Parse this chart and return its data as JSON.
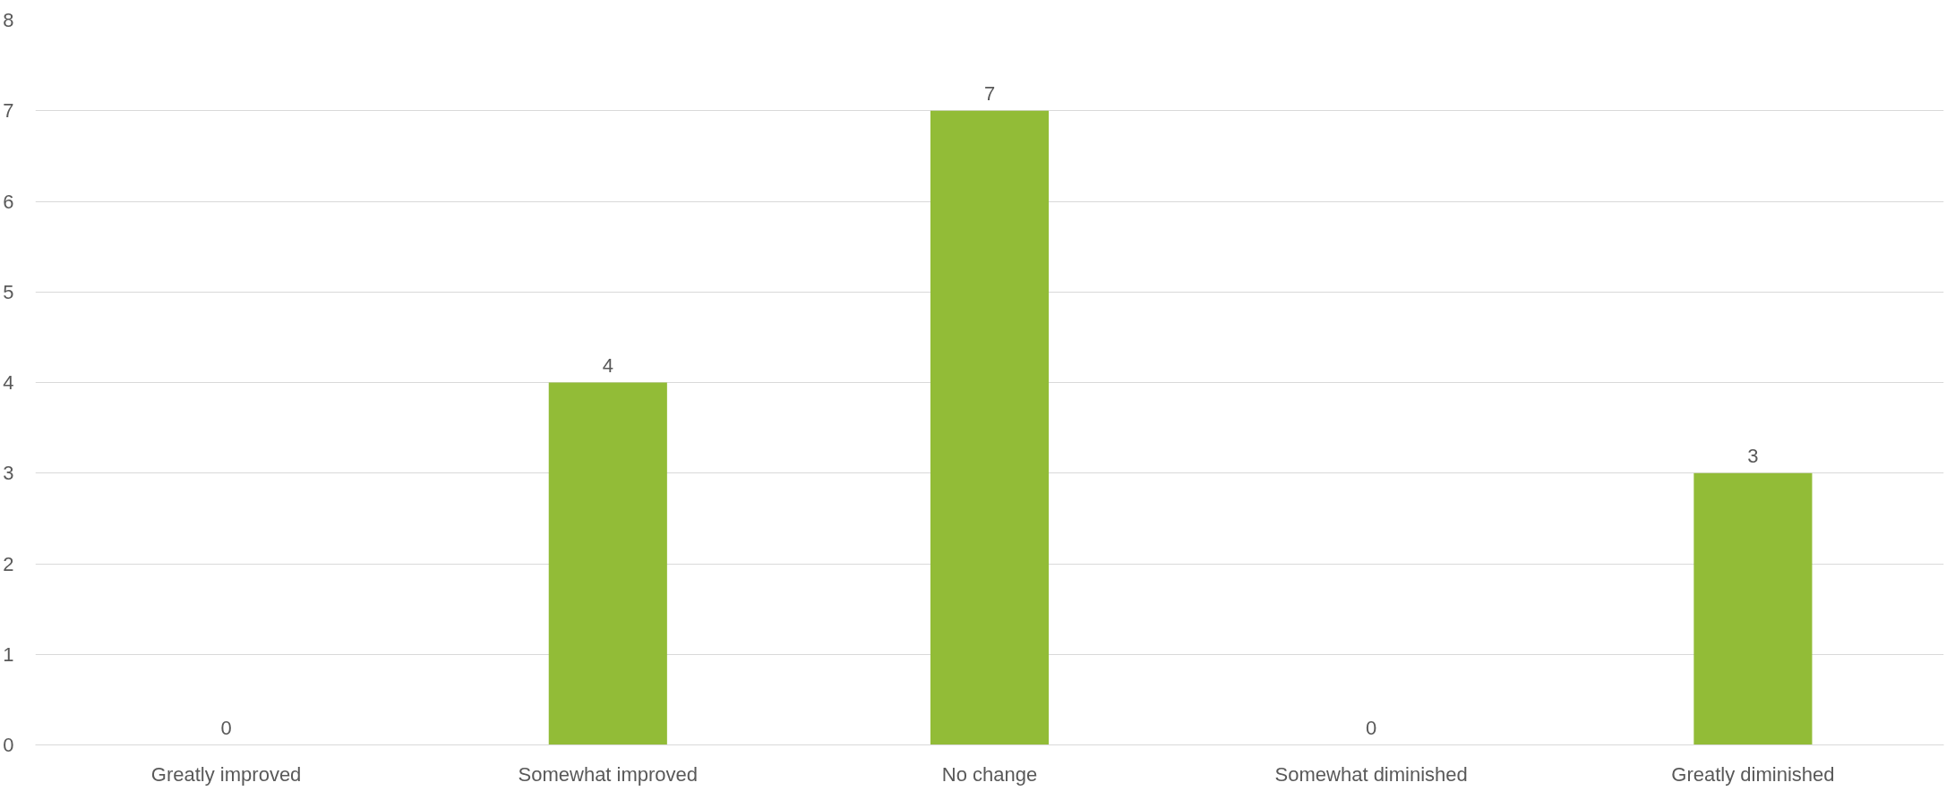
{
  "chart_data": {
    "type": "bar",
    "categories": [
      "Greatly improved",
      "Somewhat improved",
      "No change",
      "Somewhat diminished",
      "Greatly diminished"
    ],
    "values": [
      0,
      4,
      7,
      0,
      3
    ],
    "color": "#92bc37",
    "ylim": [
      0,
      8
    ],
    "yticks": [
      0,
      1,
      2,
      3,
      4,
      5,
      6,
      7,
      8
    ],
    "grid": "y",
    "data_labels": true
  }
}
